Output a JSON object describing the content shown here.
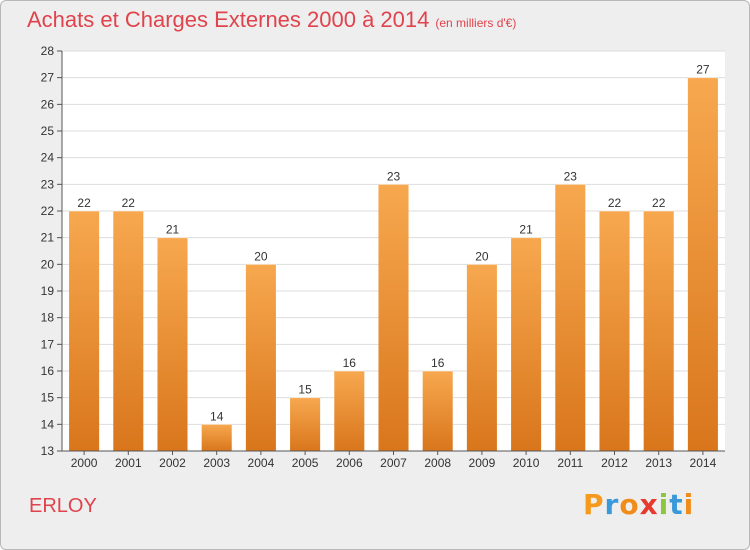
{
  "header": {
    "title": "Achats et Charges Externes 2000 à 2014",
    "unit": "(en milliers d'€)"
  },
  "footer": {
    "place": "ERLOY",
    "logo_letters": [
      "P",
      "r",
      "o",
      "x",
      "i",
      "t",
      "i"
    ],
    "logo_colors": [
      "#f59a1c",
      "#3a9ad9",
      "#f08c1a",
      "#e8392f",
      "#8cc63f",
      "#3a9ad9",
      "#f08c1a"
    ]
  },
  "chart_data": {
    "type": "bar",
    "title": "Achats et Charges Externes 2000 à 2014",
    "unit": "(en milliers d'€)",
    "categories": [
      "2000",
      "2001",
      "2002",
      "2003",
      "2004",
      "2005",
      "2006",
      "2007",
      "2008",
      "2009",
      "2010",
      "2011",
      "2012",
      "2013",
      "2014"
    ],
    "values": [
      22,
      22,
      21,
      14,
      20,
      15,
      16,
      23,
      16,
      20,
      21,
      23,
      22,
      22,
      27
    ],
    "ylim": [
      13,
      28
    ],
    "yticks": [
      13,
      14,
      15,
      16,
      17,
      18,
      19,
      20,
      21,
      22,
      23,
      24,
      25,
      26,
      27,
      28
    ],
    "grid": true,
    "bar_color_top": "#f7a84f",
    "bar_color_bottom": "#d9761c"
  }
}
